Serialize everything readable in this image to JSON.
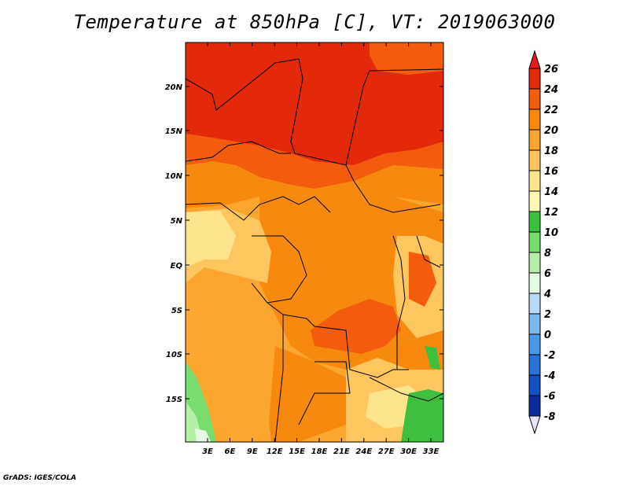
{
  "title": "Temperature at 850hPa [C], VT: 2019063000",
  "credit": "GrADS: IGES/COLA",
  "map": {
    "lat_labels": [
      "20N",
      "15N",
      "10N",
      "5N",
      "EQ",
      "5S",
      "10S",
      "15S"
    ],
    "lon_labels": [
      "3E",
      "6E",
      "9E",
      "12E",
      "15E",
      "18E",
      "21E",
      "24E",
      "27E",
      "30E",
      "33E"
    ]
  },
  "colorbar": {
    "levels": [
      "26",
      "24",
      "22",
      "20",
      "18",
      "16",
      "14",
      "12",
      "10",
      "8",
      "6",
      "4",
      "2",
      "0",
      "-2",
      "-4",
      "-6",
      "-8"
    ],
    "colors": {
      "above_26": "#e31a1c",
      "24_26": "#e22a0a",
      "22_24": "#f25c0c",
      "20_22": "#f78a0e",
      "18_20": "#fba62e",
      "16_18": "#fdc65e",
      "14_16": "#fee48c",
      "12_14": "#fdf7b3",
      "10_12": "#3fbf3f",
      "8_10": "#78dc6e",
      "6_8": "#b4f0a6",
      "4_6": "#e4fbe4",
      "2_4": "#b5dbf5",
      "0_2": "#7bb9ef",
      "-2_0": "#4a98e6",
      "-4_-2": "#2a72d6",
      "-6_-4": "#1550c0",
      "-8_-6": "#0a2ea0",
      "below_-8": "#050d60",
      "below_min_triangle": "#e6e6fa"
    }
  }
}
